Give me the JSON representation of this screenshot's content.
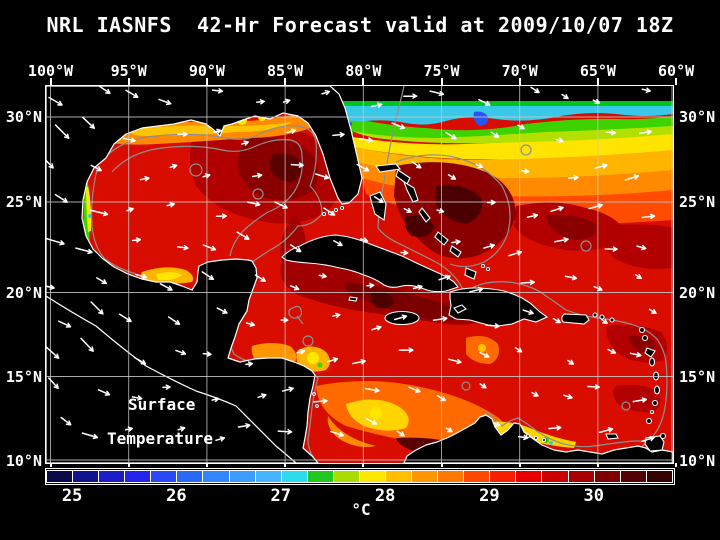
{
  "title": "NRL IASNFS  42-Hr Forecast valid at 2009/10/07 18Z",
  "axes": {
    "top_labels": [
      "100°W",
      "95°W",
      "90°W",
      "85°W",
      "80°W",
      "75°W",
      "70°W",
      "65°W",
      "60°W"
    ],
    "left_labels": [
      "30°N",
      "25°N",
      "20°N",
      "15°N",
      "10°N"
    ],
    "right_labels": [
      "30°N",
      "25°N",
      "20°N",
      "15°N",
      "10°N"
    ]
  },
  "map_overlay": {
    "line1": "Surface",
    "line2": "Temperature"
  },
  "colorbar": {
    "unit": "°C",
    "tick_labels": [
      "25",
      "26",
      "27",
      "28",
      "29",
      "30"
    ],
    "min": 24.75,
    "max": 30.75,
    "step": 0.25,
    "colors": [
      "#0a0a46",
      "#12128c",
      "#1c1cc8",
      "#2424ec",
      "#2a48f4",
      "#2a68fa",
      "#3284ff",
      "#3c9cff",
      "#46b4ff",
      "#2cdcec",
      "#22c822",
      "#aadc00",
      "#ffe800",
      "#ffbe00",
      "#ff9600",
      "#ff7800",
      "#ff4800",
      "#f81e00",
      "#e60000",
      "#cc0000",
      "#a80000",
      "#7e0000",
      "#540000",
      "#340000"
    ]
  },
  "palette": {
    "background": "#000000",
    "text": "#ffffff",
    "grid": "#c9c9c9",
    "coastline": "#ffffff",
    "land": "#000000",
    "contour": "#8f8f8f",
    "sea_base": "#d80d00"
  },
  "chart_data": {
    "type": "heatmap",
    "title": "NRL IASNFS 42-Hr Forecast valid at 2009/10/07 18Z",
    "variable": "Sea Surface Temperature",
    "unit": "°C",
    "lon_range_deg_w": [
      100,
      60
    ],
    "lat_range_deg_n": [
      10,
      30
    ],
    "colorbar_ticks": [
      25,
      26,
      27,
      28,
      29,
      30
    ],
    "colorbar_range": [
      24.75,
      30.75
    ],
    "colorbar_step": 0.25,
    "overlay_labels": [
      "Surface",
      "Temperature"
    ],
    "notes_visible_features": "Warm (29-30.5C) Gulf of Mexico and Caribbean in reds; cooler Atlantic band (25-28C) along 30N in cyan/green/yellow; coastal upwelling spots along Venezuela, Yucatan and Texas coasts; wind/current vectors and gray contour lines overlaid"
  }
}
